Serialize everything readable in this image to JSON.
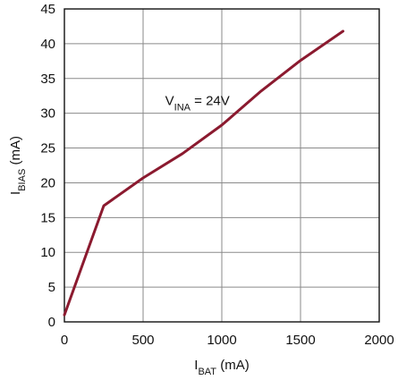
{
  "chart_data": {
    "type": "line",
    "xlabel": {
      "main": "I",
      "sub": "BAT",
      "unit": " (mA)"
    },
    "ylabel": {
      "main": "I",
      "sub": "BIAS",
      "unit": " (mA)"
    },
    "xlim": [
      0,
      2000
    ],
    "ylim": [
      0,
      45
    ],
    "xticks": [
      0,
      500,
      1000,
      1500,
      2000
    ],
    "yticks": [
      0,
      5,
      10,
      15,
      20,
      25,
      30,
      35,
      40,
      45
    ],
    "grid": true,
    "annotation": {
      "main": "V",
      "sub": "INA",
      "rest": " = 24V"
    },
    "line_color": "#8b1a2f",
    "series": [
      {
        "x": [
          0,
          250,
          500,
          750,
          1000,
          1250,
          1500,
          1770
        ],
        "y": [
          1,
          16.7,
          20.7,
          24.2,
          28.3,
          33.2,
          37.6,
          41.8
        ]
      }
    ]
  }
}
